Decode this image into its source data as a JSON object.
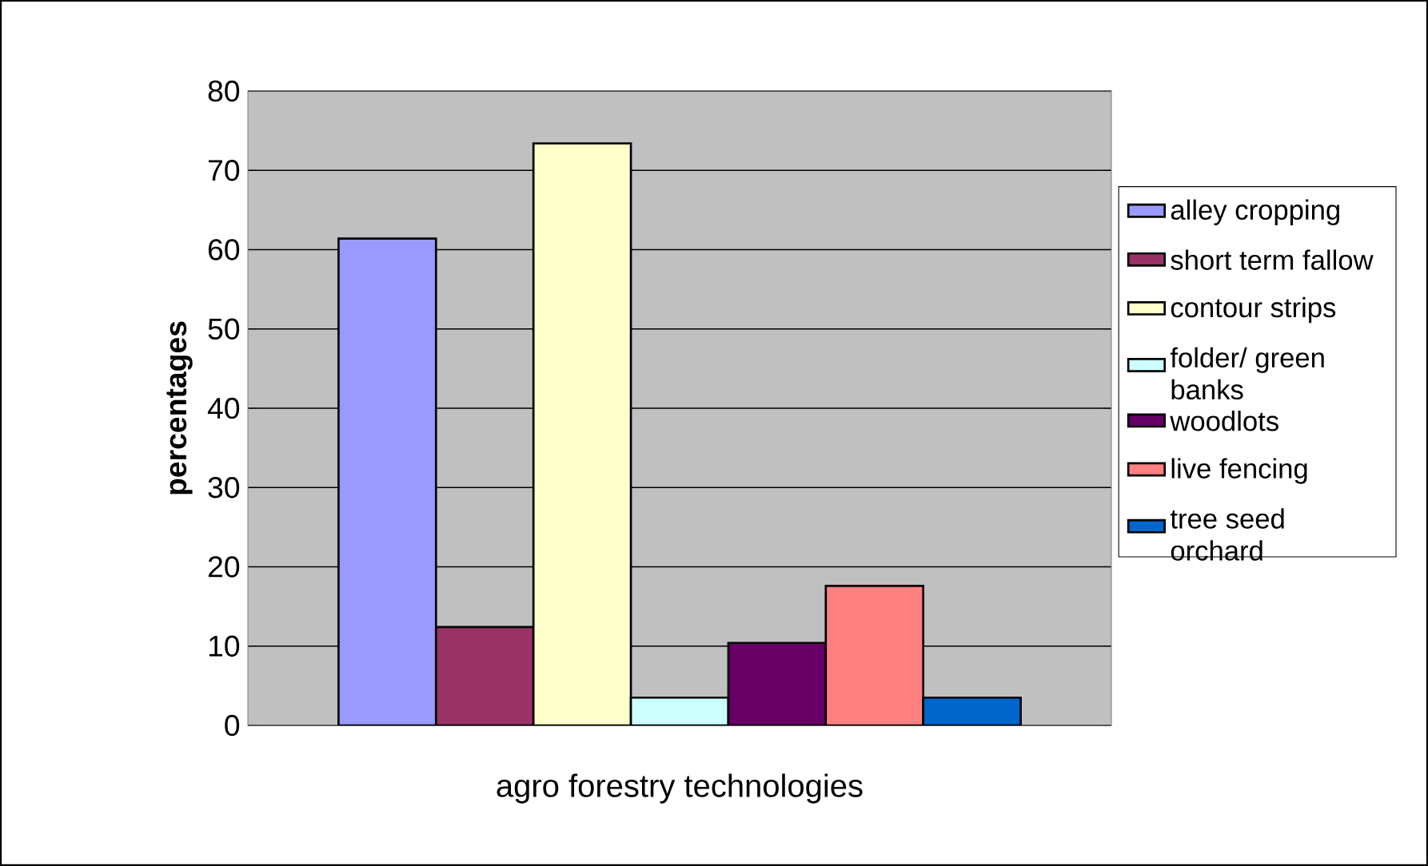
{
  "chart_data": {
    "type": "bar",
    "xlabel": "agro forestry technologies",
    "ylabel": "percentages",
    "categories": [
      null
    ],
    "series": [
      {
        "name": "alley cropping",
        "color": "#9999ff",
        "values": [
          61.4
        ]
      },
      {
        "name": "short term fallow",
        "color": "#993366",
        "values": [
          12.4
        ]
      },
      {
        "name": "contour strips",
        "color": "#ffffcc",
        "values": [
          73.4
        ]
      },
      {
        "name": "folder/ green banks",
        "color": "#ccffff",
        "values": [
          3.5
        ]
      },
      {
        "name": "woodlots",
        "color": "#660066",
        "values": [
          10.4
        ]
      },
      {
        "name": "live fencing",
        "color": "#ff8080",
        "values": [
          17.6
        ]
      },
      {
        "name": "tree seed orchard",
        "color": "#0066cc",
        "values": [
          3.5
        ]
      }
    ],
    "ylim": [
      0,
      80
    ],
    "yticks": [
      0,
      10,
      20,
      30,
      40,
      50,
      60,
      70,
      80
    ],
    "grid": "y",
    "legend": "right"
  }
}
